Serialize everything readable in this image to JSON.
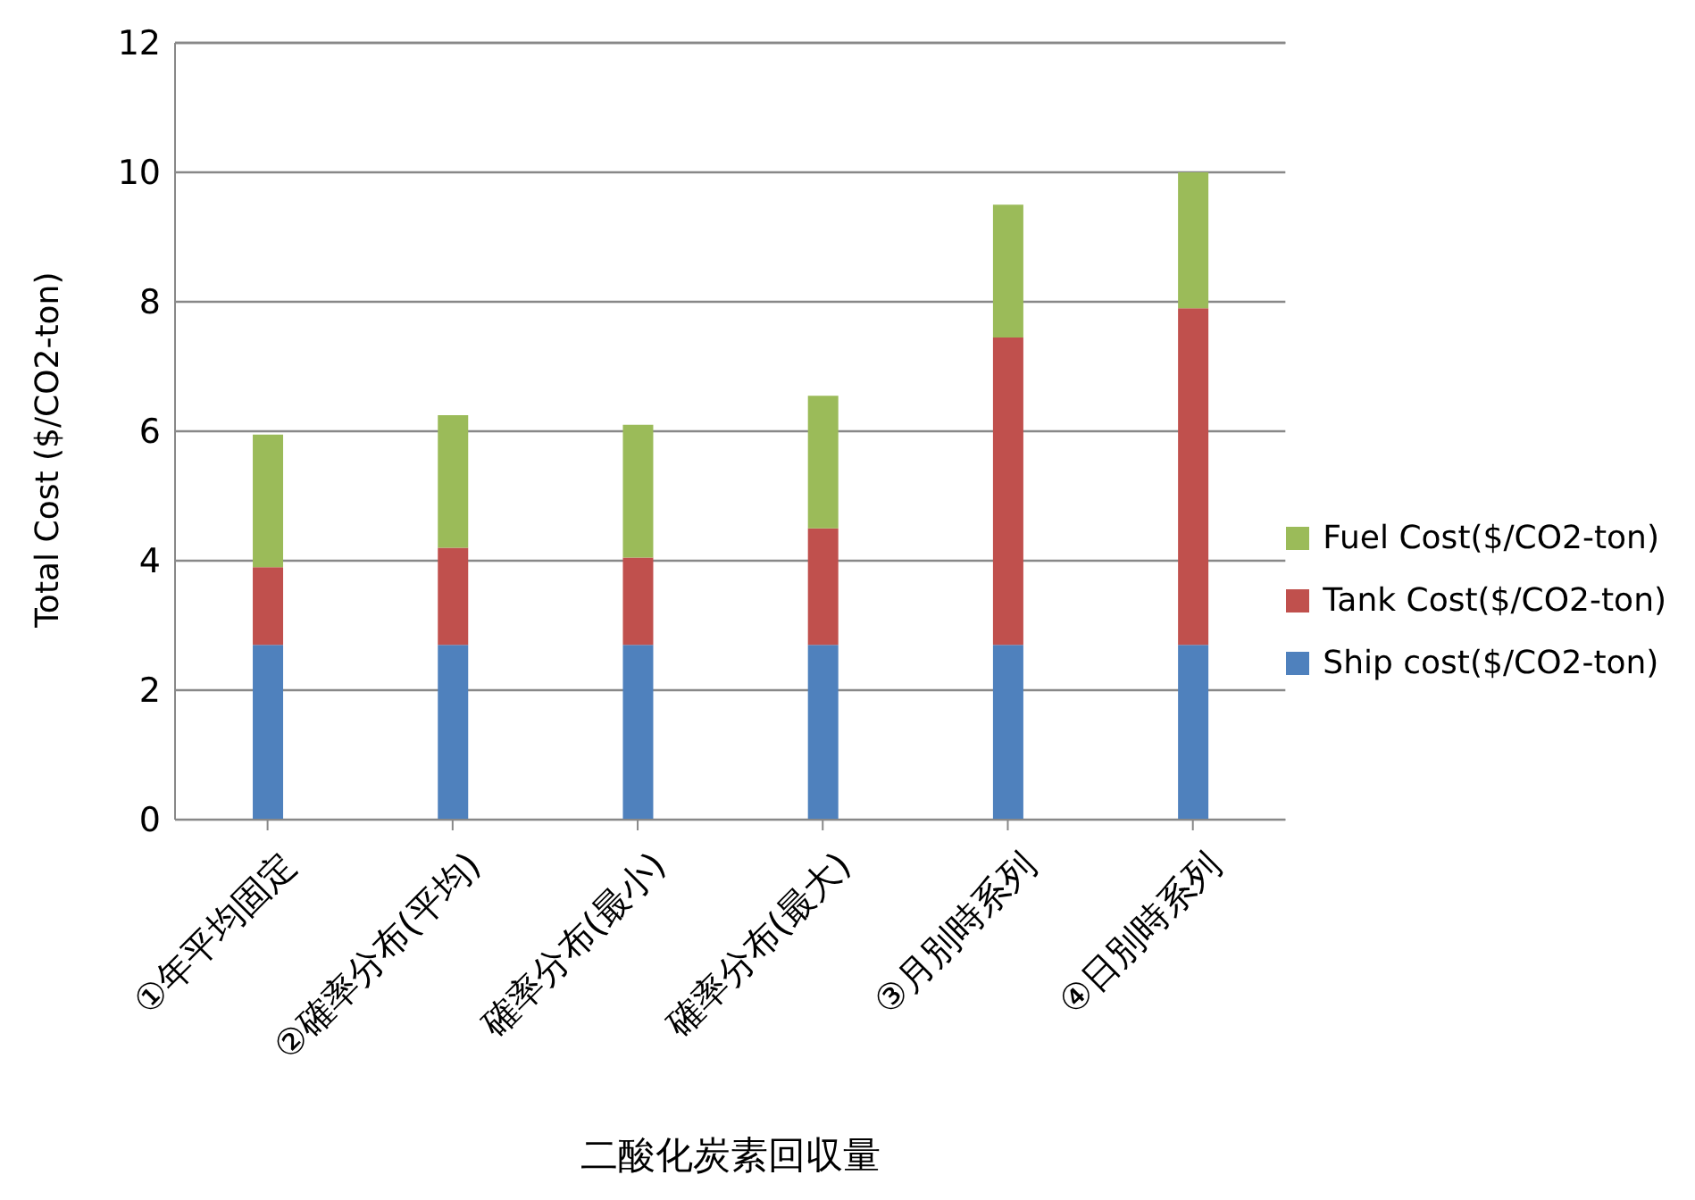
{
  "chart_data": {
    "type": "bar",
    "stacked": true,
    "xlabel": "二酸化炭素回収量",
    "ylabel": "Total Cost ($/CO2-ton)",
    "categories": [
      "①年平均固定",
      "②確率分布(平均)",
      "確率分布(最小)",
      "確率分布(最大)",
      "③月別時系列",
      "④日別時系列"
    ],
    "series": [
      {
        "name": "Ship cost($/CO2-ton)",
        "color": "#4f81bd",
        "values": [
          2.7,
          2.7,
          2.7,
          2.7,
          2.7,
          2.7
        ]
      },
      {
        "name": "Tank Cost($/CO2-ton)",
        "color": "#c0504d",
        "values": [
          1.2,
          1.5,
          1.35,
          1.8,
          4.75,
          5.2
        ]
      },
      {
        "name": "Fuel Cost($/CO2-ton)",
        "color": "#9bbb59",
        "values": [
          2.05,
          2.05,
          2.05,
          2.05,
          2.05,
          2.1
        ]
      }
    ],
    "ylim": [
      0,
      12
    ],
    "yticks": [
      0,
      2,
      4,
      6,
      8,
      10,
      12
    ],
    "grid": "y",
    "legend": "right"
  }
}
